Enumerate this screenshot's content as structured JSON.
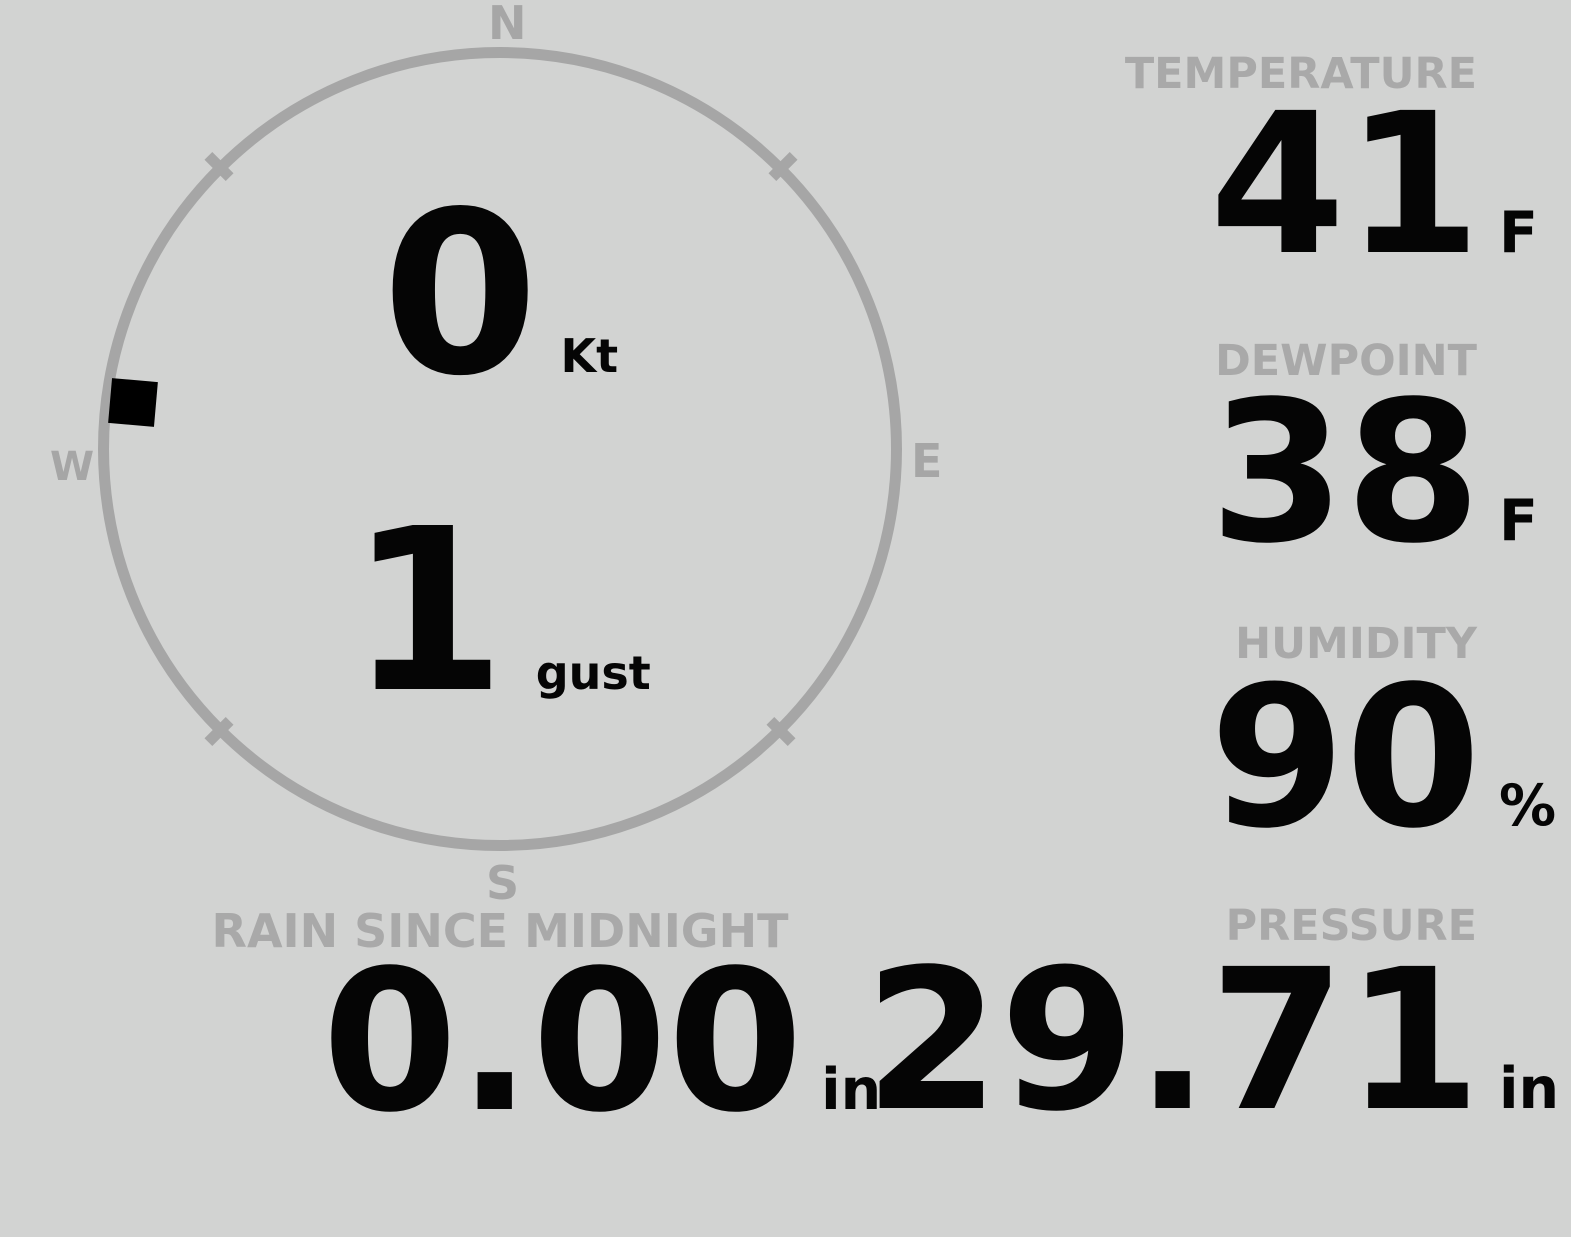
{
  "colors": {
    "background": "#d2d3d2",
    "label": "#a9a9a9",
    "ring": "#a6a6a6",
    "value": "#050505"
  },
  "wind": {
    "cardinals": {
      "north": "N",
      "east": "E",
      "south": "S",
      "west": "W"
    },
    "speed": {
      "value": "0",
      "unit": "Kt"
    },
    "gust": {
      "value": "1",
      "unit": "gust"
    }
  },
  "temperature": {
    "label": "TEMPERATURE",
    "value": "41",
    "unit": "F"
  },
  "dewpoint": {
    "label": "DEWPOINT",
    "value": "38",
    "unit": "F"
  },
  "humidity": {
    "label": "HUMIDITY",
    "value": "90",
    "unit": "%"
  },
  "rain": {
    "label": "RAIN SINCE MIDNIGHT",
    "value": "0.00",
    "unit": "in"
  },
  "pressure": {
    "label": "PRESSURE",
    "value": "29.71",
    "unit": "in"
  }
}
